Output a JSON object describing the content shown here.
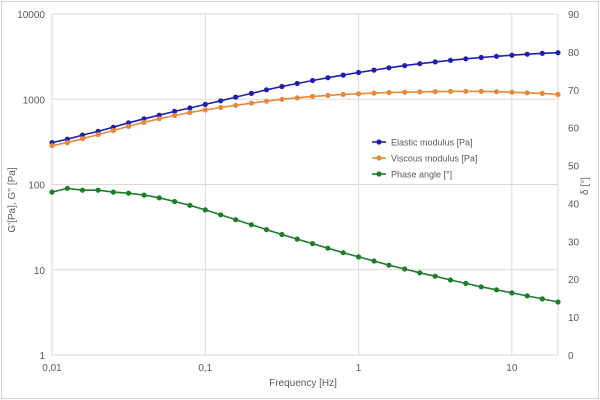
{
  "chart_data": {
    "type": "line",
    "xlabel": "Frequency [Hz]",
    "ylabel_left": "G'[Pa], G'' [Pa]",
    "ylabel_right": "δ [°]",
    "x_scale": "log",
    "y_left_scale": "log",
    "xlim": [
      0.01,
      20
    ],
    "ylim_left": [
      1,
      10000
    ],
    "ylim_right": [
      0,
      90
    ],
    "x_ticks": [
      {
        "value": 0.01,
        "label": "0,01"
      },
      {
        "value": 0.1,
        "label": "0,1"
      },
      {
        "value": 1,
        "label": "1"
      },
      {
        "value": 10,
        "label": "10"
      }
    ],
    "y_left_ticks": [
      {
        "value": 1,
        "label": "1"
      },
      {
        "value": 10,
        "label": "10"
      },
      {
        "value": 100,
        "label": "100"
      },
      {
        "value": 1000,
        "label": "1000"
      },
      {
        "value": 10000,
        "label": "10000"
      }
    ],
    "y_right_ticks": [
      {
        "value": 0,
        "label": "0"
      },
      {
        "value": 10,
        "label": "10"
      },
      {
        "value": 20,
        "label": "20"
      },
      {
        "value": 30,
        "label": "30"
      },
      {
        "value": 40,
        "label": "40"
      },
      {
        "value": 50,
        "label": "50"
      },
      {
        "value": 60,
        "label": "60"
      },
      {
        "value": 70,
        "label": "70"
      },
      {
        "value": 80,
        "label": "80"
      },
      {
        "value": 90,
        "label": "90"
      }
    ],
    "grid": true,
    "legend_position": "center-right",
    "x": [
      0.01,
      0.0126,
      0.0158,
      0.02,
      0.0251,
      0.0316,
      0.0398,
      0.0501,
      0.0631,
      0.0794,
      0.1,
      0.126,
      0.158,
      0.2,
      0.251,
      0.316,
      0.398,
      0.501,
      0.631,
      0.794,
      1,
      1.26,
      1.58,
      2,
      2.51,
      3.16,
      3.98,
      5.01,
      6.31,
      7.94,
      10,
      12.6,
      15.8,
      20
    ],
    "series": [
      {
        "name": "Elastic modulus [Pa]",
        "axis": "left",
        "color": "#1f1fb4",
        "values": [
          310,
          340,
          380,
          420,
          470,
          530,
          590,
          650,
          720,
          790,
          870,
          960,
          1060,
          1170,
          1290,
          1410,
          1530,
          1660,
          1790,
          1920,
          2060,
          2200,
          2340,
          2480,
          2610,
          2740,
          2860,
          2980,
          3090,
          3190,
          3290,
          3380,
          3460,
          3520
        ]
      },
      {
        "name": "Viscous modulus [Pa]",
        "axis": "left",
        "color": "#e8883a",
        "values": [
          285,
          310,
          345,
          385,
          430,
          480,
          535,
          590,
          645,
          700,
          750,
          800,
          850,
          900,
          950,
          1000,
          1040,
          1080,
          1110,
          1140,
          1160,
          1180,
          1200,
          1210,
          1220,
          1230,
          1235,
          1240,
          1235,
          1225,
          1210,
          1190,
          1170,
          1140
        ]
      },
      {
        "name": "Phase angle [°]",
        "axis": "right",
        "color": "#1e7d2a",
        "values": [
          43,
          44,
          43.5,
          43.5,
          43,
          42.7,
          42.2,
          41.5,
          40.5,
          39.5,
          38.3,
          37,
          35.7,
          34.4,
          33.1,
          31.8,
          30.6,
          29.4,
          28.2,
          27,
          25.9,
          24.8,
          23.7,
          22.7,
          21.7,
          20.8,
          19.8,
          18.9,
          18,
          17.2,
          16.4,
          15.6,
          14.8,
          14
        ]
      }
    ]
  }
}
